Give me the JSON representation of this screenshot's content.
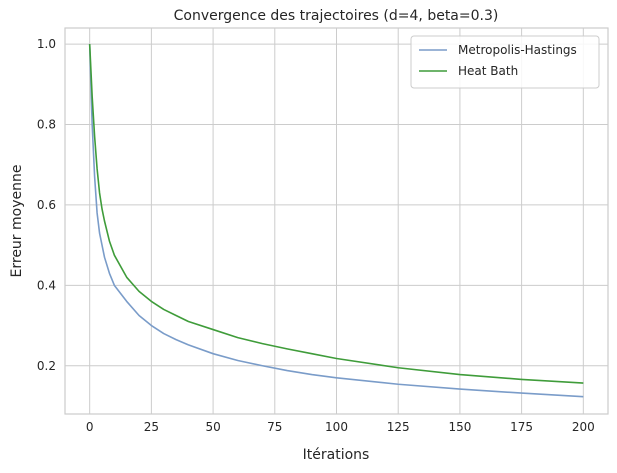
{
  "chart_data": {
    "type": "line",
    "title": "Convergence des trajectoires (d=4, beta=0.3)",
    "xlabel": "Itérations",
    "ylabel": "Erreur moyenne",
    "xlim": [
      -10,
      210
    ],
    "ylim": [
      0.08,
      1.04
    ],
    "xticks": [
      0,
      25,
      50,
      75,
      100,
      125,
      150,
      175,
      200
    ],
    "yticks": [
      0.2,
      0.4,
      0.6,
      0.8,
      1.0
    ],
    "xtick_labels": [
      "0",
      "25",
      "50",
      "75",
      "100",
      "125",
      "150",
      "175",
      "200"
    ],
    "ytick_labels": [
      "0.2",
      "0.4",
      "0.6",
      "0.8",
      "1.0"
    ],
    "grid": true,
    "legend_position": "top-right",
    "x": [
      0,
      1,
      2,
      3,
      4,
      5,
      6,
      8,
      10,
      15,
      20,
      25,
      30,
      35,
      40,
      50,
      60,
      70,
      80,
      90,
      100,
      125,
      150,
      175,
      200
    ],
    "series": [
      {
        "name": "Metropolis-Hastings",
        "color": "#7a9cc9",
        "values": [
          1.0,
          0.8,
          0.67,
          0.58,
          0.53,
          0.5,
          0.47,
          0.43,
          0.4,
          0.36,
          0.325,
          0.3,
          0.28,
          0.265,
          0.252,
          0.23,
          0.213,
          0.2,
          0.188,
          0.178,
          0.17,
          0.154,
          0.142,
          0.132,
          0.123
        ]
      },
      {
        "name": "Heat Bath",
        "color": "#3f9c3a",
        "values": [
          1.0,
          0.87,
          0.77,
          0.69,
          0.63,
          0.59,
          0.56,
          0.51,
          0.475,
          0.42,
          0.385,
          0.36,
          0.34,
          0.325,
          0.31,
          0.29,
          0.27,
          0.255,
          0.242,
          0.23,
          0.218,
          0.195,
          0.178,
          0.166,
          0.157
        ]
      }
    ]
  }
}
